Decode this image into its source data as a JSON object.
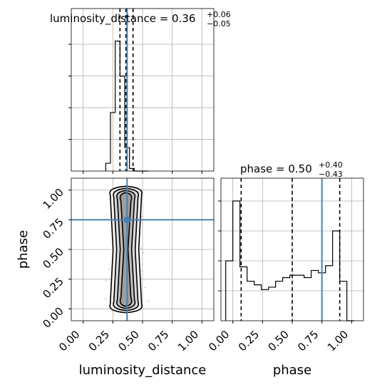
{
  "chart_data": [
    {
      "type": "histogram",
      "panel": "luminosity_distance marginal",
      "title_main": "luminosity_distance = 0.36",
      "title_sup": "+0.06",
      "title_sub": "−0.05",
      "xlim": [
        -0.1,
        1.1
      ],
      "bin_edges": [
        0.19,
        0.23,
        0.27,
        0.31,
        0.35,
        0.39,
        0.43,
        0.47,
        0.51,
        0.55
      ],
      "counts": [
        0.06,
        0.45,
        1.0,
        0.73,
        0.18,
        0.02,
        0.0,
        0.0,
        0.0
      ],
      "quantile_lines": [
        0.31,
        0.36,
        0.42
      ],
      "truth": 0.37,
      "grid": true
    },
    {
      "type": "scatter",
      "panel": "2D luminosity_distance vs phase",
      "xlabel": "luminosity_distance",
      "ylabel": "phase",
      "xlim": [
        -0.1,
        1.1
      ],
      "ylim": [
        -0.1,
        1.1
      ],
      "xticks": [
        "0.00",
        "0.25",
        "0.50",
        "0.75",
        "1.00"
      ],
      "yticks": [
        "0.00",
        "0.25",
        "0.50",
        "0.75",
        "1.00"
      ],
      "truth": {
        "x": 0.37,
        "y": 0.75
      },
      "point_cloud": {
        "x_center": 0.36,
        "x_spread": 0.05,
        "y_range": [
          0.0,
          1.0
        ]
      },
      "contour_levels": 4,
      "grid": true
    },
    {
      "type": "histogram",
      "panel": "phase marginal",
      "title_main": "phase = 0.50",
      "title_sup": "+0.40",
      "title_sub": "−0.43",
      "xlabel": "phase",
      "xlim": [
        -0.1,
        1.1
      ],
      "xticks": [
        "0.00",
        "0.25",
        "0.50",
        "0.75",
        "1.00"
      ],
      "bin_edges": [
        -0.06,
        0.0,
        0.06,
        0.12,
        0.18,
        0.24,
        0.3,
        0.36,
        0.42,
        0.48,
        0.54,
        0.6,
        0.66,
        0.72,
        0.78,
        0.84,
        0.9,
        0.96,
        1.02
      ],
      "counts": [
        0.5,
        1.0,
        0.45,
        0.33,
        0.3,
        0.26,
        0.28,
        0.33,
        0.36,
        0.38,
        0.38,
        0.36,
        0.42,
        0.4,
        0.46,
        0.75,
        0.33,
        0.0
      ],
      "quantile_lines": [
        0.07,
        0.5,
        0.9
      ],
      "truth": 0.75,
      "grid": true
    }
  ],
  "colors": {
    "truth": "#4682b4",
    "hist": "#000000",
    "grid": "#b0b0b0",
    "points": "#000000"
  }
}
